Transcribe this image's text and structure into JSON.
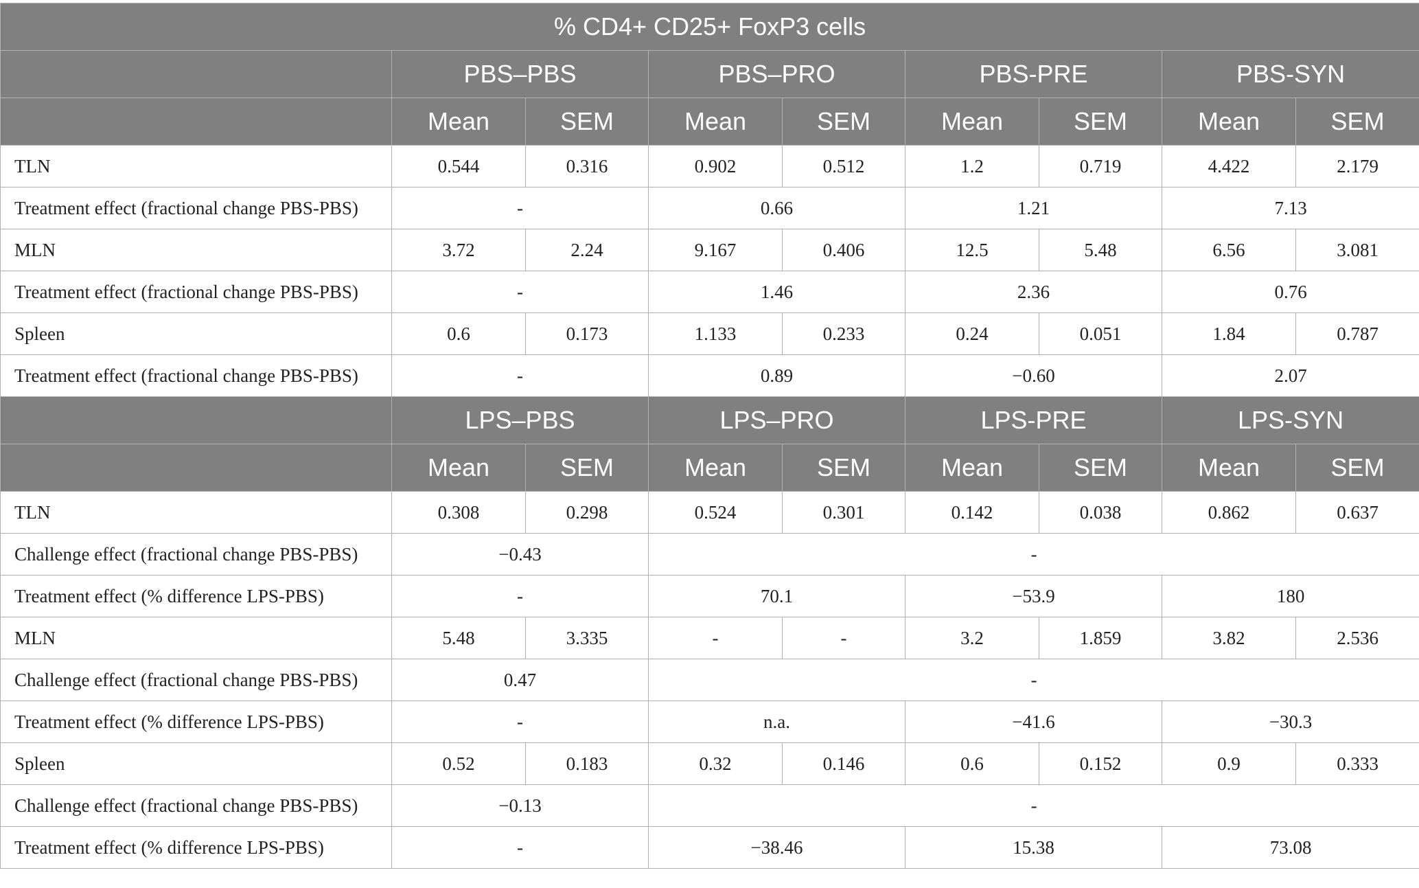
{
  "title": "% CD4+ CD25+ FoxP3 cells",
  "pbs_groups": [
    "PBS–PBS",
    "PBS–PRO",
    "PBS-PRE",
    "PBS-SYN"
  ],
  "lps_groups": [
    "LPS–PBS",
    "LPS–PRO",
    "LPS-PRE",
    "LPS-SYN"
  ],
  "stat_labels": [
    "Mean",
    "SEM"
  ],
  "pbs_rows": [
    {
      "type": "data",
      "label": "TLN",
      "cells": [
        "0.544",
        "0.316",
        "0.902",
        "0.512",
        "1.2",
        "0.719",
        "4.422",
        "2.179"
      ]
    },
    {
      "type": "effect",
      "label": "Treatment effect (fractional change PBS-PBS)",
      "cells": [
        "-",
        "0.66",
        "1.21",
        "7.13"
      ]
    },
    {
      "type": "data",
      "label": "MLN",
      "cells": [
        "3.72",
        "2.24",
        "9.167",
        "0.406",
        "12.5",
        "5.48",
        "6.56",
        "3.081"
      ]
    },
    {
      "type": "effect",
      "label": "Treatment effect (fractional change PBS-PBS)",
      "cells": [
        "-",
        "1.46",
        "2.36",
        "0.76"
      ]
    },
    {
      "type": "data",
      "label": "Spleen",
      "cells": [
        "0.6",
        "0.173",
        "1.133",
        "0.233",
        "0.24",
        "0.051",
        "1.84",
        "0.787"
      ]
    },
    {
      "type": "effect",
      "label": "Treatment effect (fractional change PBS-PBS)",
      "cells": [
        "-",
        "0.89",
        "−0.60",
        "2.07"
      ]
    }
  ],
  "lps_rows": [
    {
      "type": "data",
      "label": "TLN",
      "cells": [
        "0.308",
        "0.298",
        "0.524",
        "0.301",
        "0.142",
        "0.038",
        "0.862",
        "0.637"
      ]
    },
    {
      "type": "challenge",
      "label": "Challenge effect (fractional change PBS-PBS)",
      "cells": [
        "−0.43",
        "-"
      ]
    },
    {
      "type": "effect",
      "label": "Treatment effect (% difference LPS-PBS)",
      "cells": [
        "-",
        "70.1",
        "−53.9",
        "180"
      ]
    },
    {
      "type": "data",
      "label": "MLN",
      "cells": [
        "5.48",
        "3.335",
        "-",
        "-",
        "3.2",
        "1.859",
        "3.82",
        "2.536"
      ]
    },
    {
      "type": "challenge",
      "label": "Challenge effect (fractional change PBS-PBS)",
      "cells": [
        "0.47",
        "-"
      ]
    },
    {
      "type": "effect",
      "label": "Treatment effect (% difference LPS-PBS)",
      "cells": [
        "-",
        "n.a.",
        "−41.6",
        "−30.3"
      ]
    },
    {
      "type": "data",
      "label": "Spleen",
      "cells": [
        "0.52",
        "0.183",
        "0.32",
        "0.146",
        "0.6",
        "0.152",
        "0.9",
        "0.333"
      ]
    },
    {
      "type": "challenge",
      "label": "Challenge effect (fractional change PBS-PBS)",
      "cells": [
        "−0.13",
        "-"
      ]
    },
    {
      "type": "effect",
      "label": "Treatment effect (% difference LPS-PBS)",
      "cells": [
        "-",
        "−38.46",
        "15.38",
        "73.08"
      ]
    }
  ]
}
